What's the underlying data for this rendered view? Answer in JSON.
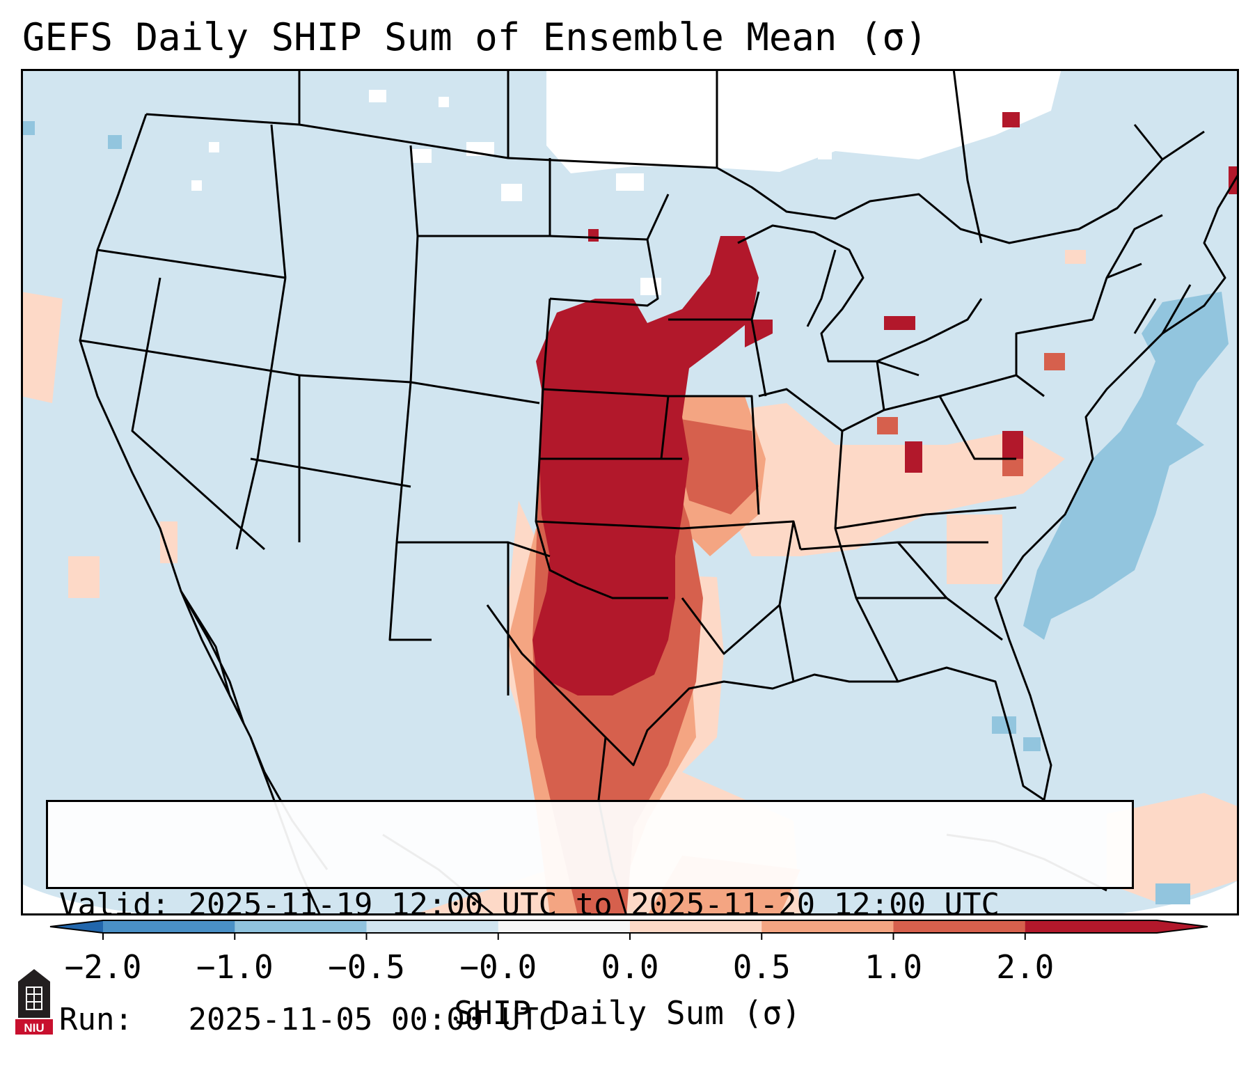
{
  "title": "GEFS Daily SHIP Sum of Ensemble Mean (σ)",
  "info": {
    "valid_label": "Valid:",
    "valid_value": "2025-11-19 12:00 UTC to 2025-11-20 12:00 UTC",
    "run_label": "Run:",
    "run_value": "2025-11-05 00:00 UTC"
  },
  "colorbar": {
    "label": "SHIP Daily Sum (σ)",
    "ticks": [
      "−2.0",
      "−1.0",
      "−0.5",
      "−0.0",
      "0.0",
      "0.5",
      "1.0",
      "2.0"
    ],
    "colors": [
      "#4a90c6",
      "#90c3de",
      "#d1e5f0",
      "#f7f7f7",
      "#fdd9c7",
      "#f4a582",
      "#d6604d",
      "#b2182b"
    ],
    "extend_low_color": "#2166ac",
    "extend_high_color": "#b2182b"
  },
  "map": {
    "background_color": "#d1e5f0",
    "region": "Contiguous United States",
    "highlight": "Strongest positive anomaly (> 2.0 σ) over Great Plains and Upper Midwest"
  },
  "logo": {
    "text": "NIU",
    "icon": "niu-logo-icon"
  }
}
